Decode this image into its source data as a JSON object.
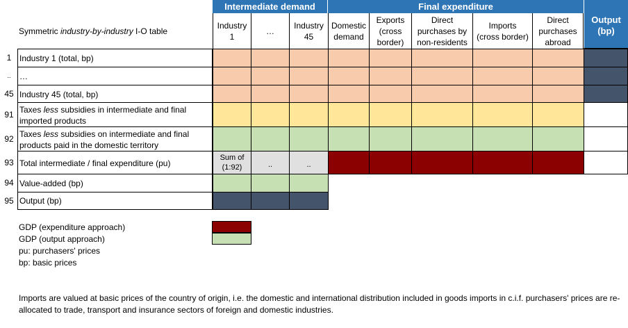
{
  "table_title": {
    "before": "Symmetric ",
    "italic": "industry-by-industry",
    "after": " I-O table"
  },
  "group_headers": {
    "intermediate": "Intermediate demand",
    "final": "Final expenditure",
    "output": "Output\n(bp)"
  },
  "columns": [
    {
      "key": "ind1",
      "label": "Industry\n1"
    },
    {
      "key": "dots",
      "label": "…"
    },
    {
      "key": "ind45",
      "label": "Industry\n45"
    },
    {
      "key": "domestic",
      "label": "Domestic\ndemand"
    },
    {
      "key": "exports",
      "label": "Exports\n(cross\nborder)"
    },
    {
      "key": "direct_nonres",
      "label": "Direct\npurchases by\nnon-residents"
    },
    {
      "key": "imports",
      "label": "Imports\n(cross border)"
    },
    {
      "key": "direct_abroad",
      "label": "Direct\npurchases\nabroad"
    }
  ],
  "rows": [
    {
      "num": "1",
      "label": "Industry 1 (total, bp)"
    },
    {
      "num": "..",
      "label": "…"
    },
    {
      "num": "45",
      "label": "Industry 45 (total, bp)"
    },
    {
      "num": "91",
      "label_before": "Taxes ",
      "label_italic": "less",
      "label_after": " subsidies in intermediate and final imported products"
    },
    {
      "num": "92",
      "label_before": "Taxes ",
      "label_italic": "less",
      "label_after": " subsidies on intermediate and final products paid in the domestic territory"
    },
    {
      "num": "93",
      "label": "Total intermediate / final expenditure (pu)"
    },
    {
      "num": "94",
      "label": "Value-added (bp)"
    },
    {
      "num": "95",
      "label": "Output (bp)"
    }
  ],
  "row93_cells": {
    "sum_label": "Sum of\n(1:92)",
    "dots1": "..",
    "dots2": ".."
  },
  "colors": {
    "header_blue": "#2e75b6",
    "salmon": "#f8cbad",
    "yellow": "#ffe699",
    "green": "#c6e0b4",
    "dark_red": "#8b0000",
    "slate": "#44546a",
    "grey": "#e0e0e0"
  },
  "legend": {
    "gdp_expenditure": "GDP (expenditure approach)",
    "gdp_output": "GDP (output approach)",
    "pu": "pu: purchasers' prices",
    "bp": "bp: basic prices"
  },
  "footnote": "Imports are valued at basic prices of the country of origin, i.e. the domestic and international distribution included in goods imports in c.i.f. purchasers' prices are re-allocated to trade, transport and insurance sectors of foreign and domestic industries."
}
